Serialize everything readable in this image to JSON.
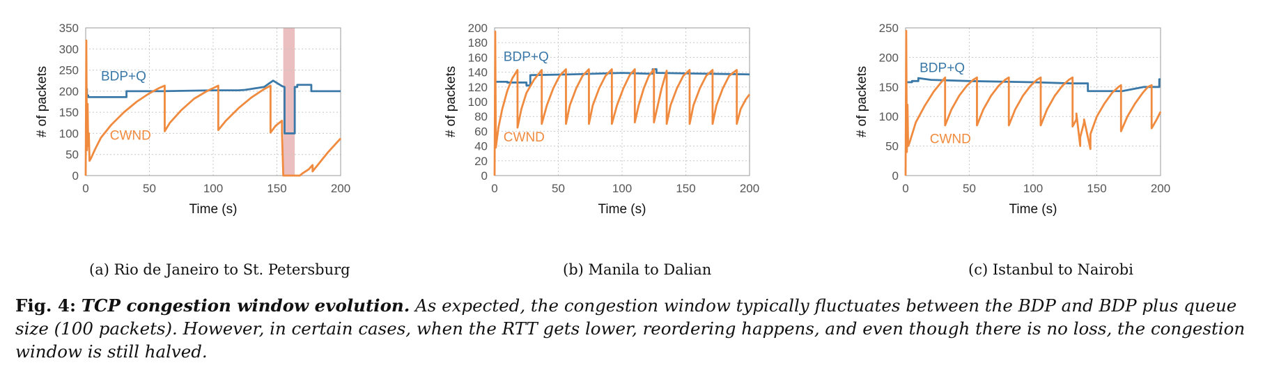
{
  "figure": {
    "label": "Fig. 4:",
    "title": "TCP congestion window evolution.",
    "text": " As expected, the congestion window typically fluctuates between the BDP and BDP plus queue size (100 packets). However, in certain cases, when the RTT gets lower, reordering happens, and even though there is no loss, the congestion window is still halved."
  },
  "colors": {
    "bdp": "#3a78a8",
    "cwnd": "#f08a3e",
    "shade": "#e8b4b4"
  },
  "chart_data": [
    {
      "type": "line",
      "subcaption": "(a)  Rio de Janeiro to St. Petersburg",
      "xlabel": "Time (s)",
      "ylabel": "# of packets",
      "xlim": [
        0,
        200
      ],
      "ylim": [
        0,
        350
      ],
      "xticks": [
        0,
        50,
        100,
        150,
        200
      ],
      "yticks": [
        0,
        50,
        100,
        150,
        200,
        250,
        300,
        350
      ],
      "grid": true,
      "shaded_x_range": [
        155,
        164
      ],
      "series": [
        {
          "name": "BDP+Q",
          "color": "bdp",
          "label_at": [
            12,
            225
          ],
          "x": [
            0,
            1,
            1,
            2,
            2,
            32,
            32,
            60,
            100,
            120,
            125,
            125,
            140,
            140,
            147,
            147,
            154,
            154,
            156,
            156,
            164,
            164,
            166,
            166,
            177,
            177,
            200
          ],
          "y": [
            205,
            205,
            190,
            190,
            186,
            186,
            200,
            200,
            202,
            202,
            203,
            203,
            210,
            210,
            225,
            225,
            212,
            212,
            210,
            100,
            100,
            210,
            210,
            215,
            215,
            200,
            200
          ]
        },
        {
          "name": "CWND",
          "color": "cwnd",
          "label_at": [
            19,
            85
          ],
          "x": [
            0,
            0.5,
            1,
            1.5,
            2,
            2.5,
            3,
            4,
            7,
            12,
            20,
            30,
            40,
            50,
            58,
            62,
            62,
            66,
            75,
            85,
            95,
            104,
            104,
            110,
            120,
            130,
            140,
            145,
            145,
            149,
            154,
            154,
            155,
            156,
            165,
            168,
            170,
            175,
            178,
            178,
            182,
            190,
            200
          ],
          "y": [
            0,
            320,
            60,
            170,
            70,
            100,
            35,
            40,
            60,
            90,
            120,
            150,
            175,
            195,
            208,
            213,
            105,
            125,
            155,
            182,
            200,
            213,
            108,
            130,
            160,
            185,
            205,
            213,
            102,
            118,
            130,
            100,
            0,
            0,
            0,
            0,
            5,
            15,
            25,
            10,
            25,
            55,
            88
          ]
        }
      ]
    },
    {
      "type": "line",
      "subcaption": "(b)  Manila to Dalian",
      "xlabel": "Time (s)",
      "ylabel": "# of packets",
      "xlim": [
        0,
        200
      ],
      "ylim": [
        0,
        200
      ],
      "xticks": [
        0,
        50,
        100,
        150,
        200
      ],
      "yticks": [
        0,
        20,
        40,
        60,
        80,
        100,
        120,
        140,
        160,
        180,
        200
      ],
      "grid": true,
      "series": [
        {
          "name": "BDP+Q",
          "color": "bdp",
          "label_at": [
            7,
            155
          ],
          "x": [
            0,
            10,
            10,
            25,
            25,
            28,
            28,
            60,
            100,
            120,
            124,
            124,
            127,
            127,
            200
          ],
          "y": [
            127,
            127,
            126,
            126,
            122,
            122,
            136,
            137,
            139,
            138,
            138,
            144,
            144,
            139,
            137
          ],
          "smooth_noise": true
        },
        {
          "name": "CWND",
          "color": "cwnd",
          "label_at": [
            7,
            46
          ],
          "x": [
            0,
            0.5,
            1,
            3,
            6,
            10,
            14,
            18,
            18,
            21,
            25,
            31,
            37,
            37,
            41,
            46,
            51,
            56,
            56,
            59,
            64,
            69,
            74,
            74,
            77,
            82,
            87,
            92,
            92,
            96,
            101,
            106,
            110,
            110,
            113,
            117,
            121,
            125,
            125,
            128,
            131,
            135,
            135,
            138,
            143,
            148,
            153,
            153,
            156,
            161,
            166,
            171,
            171,
            174,
            179,
            184,
            190,
            190,
            193,
            197,
            200
          ],
          "y": [
            0,
            195,
            38,
            65,
            90,
            115,
            132,
            143,
            65,
            90,
            112,
            130,
            143,
            70,
            95,
            118,
            135,
            144,
            70,
            95,
            118,
            135,
            144,
            70,
            95,
            118,
            135,
            144,
            70,
            95,
            118,
            136,
            144,
            72,
            95,
            118,
            135,
            144,
            72,
            95,
            118,
            142,
            70,
            95,
            118,
            135,
            143,
            70,
            95,
            118,
            135,
            143,
            70,
            95,
            118,
            135,
            143,
            70,
            90,
            103,
            110
          ]
        }
      ]
    },
    {
      "type": "line",
      "subcaption": "(c)  Istanbul to Nairobi",
      "xlabel": "Time (s)",
      "ylabel": "# of packets",
      "xlim": [
        0,
        200
      ],
      "ylim": [
        0,
        250
      ],
      "xticks": [
        0,
        50,
        100,
        150,
        200
      ],
      "yticks": [
        0,
        50,
        100,
        150,
        200,
        250
      ],
      "grid": true,
      "series": [
        {
          "name": "BDP+Q",
          "color": "bdp",
          "label_at": [
            11,
            175
          ],
          "x": [
            0,
            5,
            5,
            10,
            10,
            20,
            50,
            100,
            130,
            130,
            143,
            143,
            160,
            170,
            170,
            187,
            187,
            199,
            199,
            200
          ],
          "y": [
            158,
            158,
            160,
            160,
            165,
            162,
            160,
            158,
            156,
            156,
            156,
            143,
            143,
            143,
            143,
            150,
            150,
            150,
            163,
            163
          ]
        },
        {
          "name": "CWND",
          "color": "cwnd",
          "label_at": [
            19,
            55
          ],
          "x": [
            0,
            0.5,
            1,
            1.5,
            2,
            3,
            8,
            15,
            22,
            28,
            31,
            31,
            36,
            42,
            48,
            53,
            56,
            56,
            61,
            67,
            73,
            78,
            81,
            81,
            86,
            92,
            98,
            103,
            106,
            106,
            111,
            117,
            123,
            128,
            131,
            131,
            134,
            134,
            137,
            137,
            140,
            140,
            145,
            145,
            150,
            156,
            162,
            167,
            169,
            169,
            174,
            180,
            186,
            190,
            193,
            193,
            197,
            200
          ],
          "y": [
            0,
            245,
            40,
            120,
            50,
            55,
            90,
            118,
            142,
            158,
            166,
            85,
            112,
            135,
            152,
            162,
            166,
            85,
            112,
            135,
            152,
            162,
            166,
            85,
            112,
            135,
            152,
            162,
            166,
            85,
            112,
            135,
            152,
            162,
            166,
            83,
            95,
            105,
            50,
            65,
            90,
            95,
            45,
            70,
            100,
            122,
            140,
            150,
            153,
            75,
            100,
            122,
            140,
            150,
            153,
            80,
            95,
            108
          ]
        }
      ]
    }
  ]
}
